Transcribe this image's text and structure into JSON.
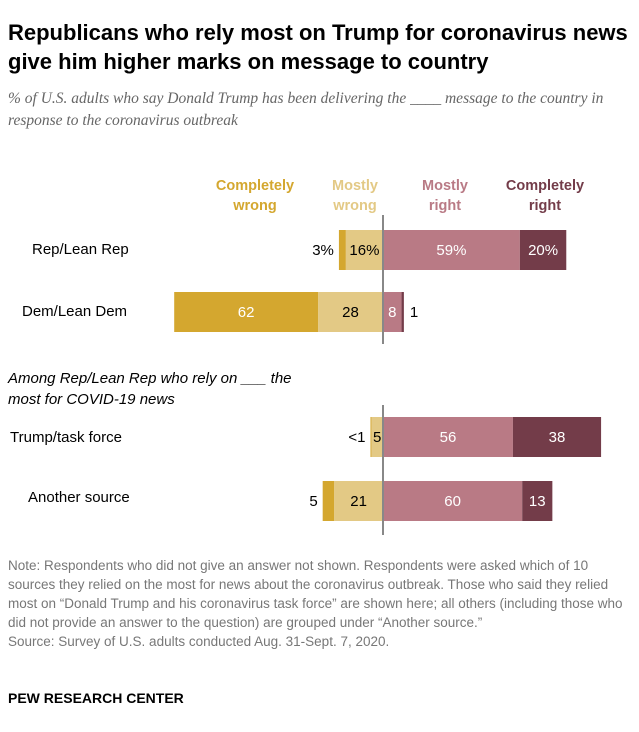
{
  "chart_data": {
    "type": "bar",
    "title": "Republicans who rely most on Trump for coronavirus news give him higher marks on message to country",
    "subtitle": "% of U.S. adults who say Donald Trump has been delivering the ____ message to the country in response to the coronavirus outbreak",
    "legend": [
      "Completely wrong",
      "Mostly wrong",
      "Mostly right",
      "Completely right"
    ],
    "legend_lines": [
      [
        "Completely",
        "wrong"
      ],
      [
        "Mostly",
        "wrong"
      ],
      [
        "Mostly",
        "right"
      ],
      [
        "Completely",
        "right"
      ]
    ],
    "colors": [
      "#d4a72f",
      "#e3c985",
      "#b97a85",
      "#733c49"
    ],
    "section_label": [
      "Among Rep/Lean Rep who rely on ___ the",
      "most for COVID-19 news"
    ],
    "rows": [
      {
        "label": "Rep/Lean Rep",
        "values": [
          3,
          16,
          59,
          20
        ],
        "labels": [
          "3%",
          "16%",
          "59%",
          "20%"
        ]
      },
      {
        "label": "Dem/Lean Dem",
        "values": [
          62,
          28,
          8,
          1
        ],
        "labels": [
          "62",
          "28",
          "8",
          "1"
        ]
      },
      {
        "label": "Trump/task force",
        "values": [
          0.4,
          5,
          56,
          38
        ],
        "labels": [
          "<1",
          "5",
          "56",
          "38"
        ]
      },
      {
        "label": "Another source",
        "values": [
          5,
          21,
          60,
          13
        ],
        "labels": [
          "5",
          "21",
          "60",
          "13"
        ]
      }
    ]
  },
  "note": "Note: Respondents who did not give an answer not shown. Respondents were asked which of 10 sources they relied on the most for news about the coronavirus outbreak. Those who said they relied most on “Donald Trump and his coronavirus task force” are shown here; all others (including those who did not provide an answer to the question) are grouped under “Another source.”",
  "source": "Source: Survey of U.S. adults conducted Aug. 31-Sept. 7, 2020.",
  "brand": "PEW RESEARCH CENTER"
}
